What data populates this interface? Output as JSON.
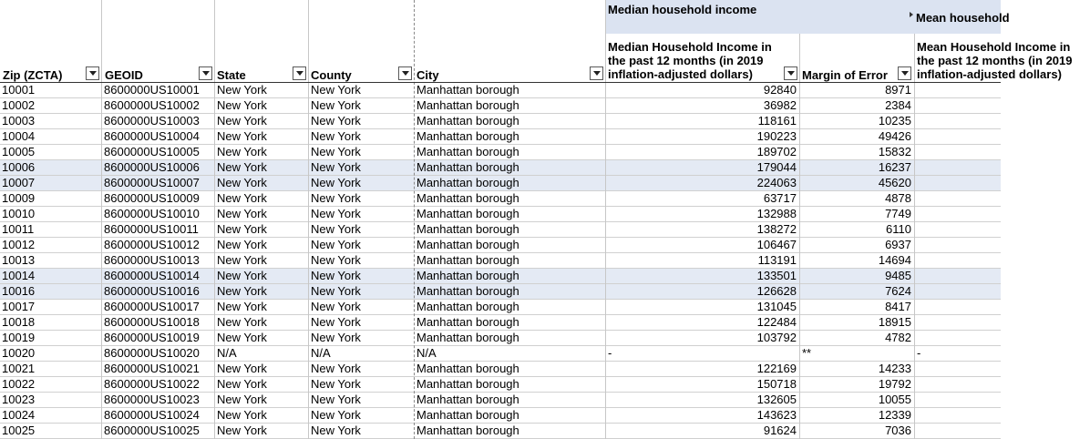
{
  "group_headers": {
    "median": "Median household income",
    "mean": "Mean household"
  },
  "columns": {
    "zip": "Zip (ZCTA)",
    "geoid": "GEOID",
    "state": "State",
    "county": "County",
    "city": "City",
    "median_income": "Median Household Income in the past 12 months (in 2019 inflation-adjusted dollars)",
    "margin_error": "Margin of Error",
    "mean_income": "Mean Household Income in the past 12 months (in 2019 inflation-adjusted dollars)"
  },
  "rows": [
    {
      "zip": "10001",
      "geoid": "8600000US10001",
      "state": "New York",
      "county": "New York",
      "city": "Manhattan borough",
      "median": "92840",
      "moe": "8971",
      "mean": "",
      "selected": false
    },
    {
      "zip": "10002",
      "geoid": "8600000US10002",
      "state": "New York",
      "county": "New York",
      "city": "Manhattan borough",
      "median": "36982",
      "moe": "2384",
      "mean": "",
      "selected": false
    },
    {
      "zip": "10003",
      "geoid": "8600000US10003",
      "state": "New York",
      "county": "New York",
      "city": "Manhattan borough",
      "median": "118161",
      "moe": "10235",
      "mean": "",
      "selected": false
    },
    {
      "zip": "10004",
      "geoid": "8600000US10004",
      "state": "New York",
      "county": "New York",
      "city": "Manhattan borough",
      "median": "190223",
      "moe": "49426",
      "mean": "",
      "selected": false
    },
    {
      "zip": "10005",
      "geoid": "8600000US10005",
      "state": "New York",
      "county": "New York",
      "city": "Manhattan borough",
      "median": "189702",
      "moe": "15832",
      "mean": "",
      "selected": false
    },
    {
      "zip": "10006",
      "geoid": "8600000US10006",
      "state": "New York",
      "county": "New York",
      "city": "Manhattan borough",
      "median": "179044",
      "moe": "16237",
      "mean": "",
      "selected": true
    },
    {
      "zip": "10007",
      "geoid": "8600000US10007",
      "state": "New York",
      "county": "New York",
      "city": "Manhattan borough",
      "median": "224063",
      "moe": "45620",
      "mean": "",
      "selected": true
    },
    {
      "zip": "10009",
      "geoid": "8600000US10009",
      "state": "New York",
      "county": "New York",
      "city": "Manhattan borough",
      "median": "63717",
      "moe": "4878",
      "mean": "",
      "selected": false
    },
    {
      "zip": "10010",
      "geoid": "8600000US10010",
      "state": "New York",
      "county": "New York",
      "city": "Manhattan borough",
      "median": "132988",
      "moe": "7749",
      "mean": "",
      "selected": false
    },
    {
      "zip": "10011",
      "geoid": "8600000US10011",
      "state": "New York",
      "county": "New York",
      "city": "Manhattan borough",
      "median": "138272",
      "moe": "6110",
      "mean": "",
      "selected": false
    },
    {
      "zip": "10012",
      "geoid": "8600000US10012",
      "state": "New York",
      "county": "New York",
      "city": "Manhattan borough",
      "median": "106467",
      "moe": "6937",
      "mean": "",
      "selected": false
    },
    {
      "zip": "10013",
      "geoid": "8600000US10013",
      "state": "New York",
      "county": "New York",
      "city": "Manhattan borough",
      "median": "113191",
      "moe": "14694",
      "mean": "",
      "selected": false
    },
    {
      "zip": "10014",
      "geoid": "8600000US10014",
      "state": "New York",
      "county": "New York",
      "city": "Manhattan borough",
      "median": "133501",
      "moe": "9485",
      "mean": "",
      "selected": true
    },
    {
      "zip": "10016",
      "geoid": "8600000US10016",
      "state": "New York",
      "county": "New York",
      "city": "Manhattan borough",
      "median": "126628",
      "moe": "7624",
      "mean": "",
      "selected": true
    },
    {
      "zip": "10017",
      "geoid": "8600000US10017",
      "state": "New York",
      "county": "New York",
      "city": "Manhattan borough",
      "median": "131045",
      "moe": "8417",
      "mean": "",
      "selected": false
    },
    {
      "zip": "10018",
      "geoid": "8600000US10018",
      "state": "New York",
      "county": "New York",
      "city": "Manhattan borough",
      "median": "122484",
      "moe": "18915",
      "mean": "",
      "selected": false
    },
    {
      "zip": "10019",
      "geoid": "8600000US10019",
      "state": "New York",
      "county": "New York",
      "city": "Manhattan borough",
      "median": "103792",
      "moe": "4782",
      "mean": "",
      "selected": false
    },
    {
      "zip": "10020",
      "geoid": "8600000US10020",
      "state": "N/A",
      "county": "N/A",
      "city": "N/A",
      "median": "-",
      "moe": "**",
      "mean": "-",
      "selected": false
    },
    {
      "zip": "10021",
      "geoid": "8600000US10021",
      "state": "New York",
      "county": "New York",
      "city": "Manhattan borough",
      "median": "122169",
      "moe": "14233",
      "mean": "",
      "selected": false
    },
    {
      "zip": "10022",
      "geoid": "8600000US10022",
      "state": "New York",
      "county": "New York",
      "city": "Manhattan borough",
      "median": "150718",
      "moe": "19792",
      "mean": "",
      "selected": false
    },
    {
      "zip": "10023",
      "geoid": "8600000US10023",
      "state": "New York",
      "county": "New York",
      "city": "Manhattan borough",
      "median": "132605",
      "moe": "10055",
      "mean": "",
      "selected": false
    },
    {
      "zip": "10024",
      "geoid": "8600000US10024",
      "state": "New York",
      "county": "New York",
      "city": "Manhattan borough",
      "median": "143623",
      "moe": "12339",
      "mean": "",
      "selected": false
    },
    {
      "zip": "10025",
      "geoid": "8600000US10025",
      "state": "New York",
      "county": "New York",
      "city": "Manhattan borough",
      "median": "91624",
      "moe": "7036",
      "mean": "",
      "selected": false
    }
  ],
  "colors": {
    "header_band": "#dbe3f1",
    "selected_row": "#e4eaf4",
    "grid": "#d0d0d0"
  }
}
